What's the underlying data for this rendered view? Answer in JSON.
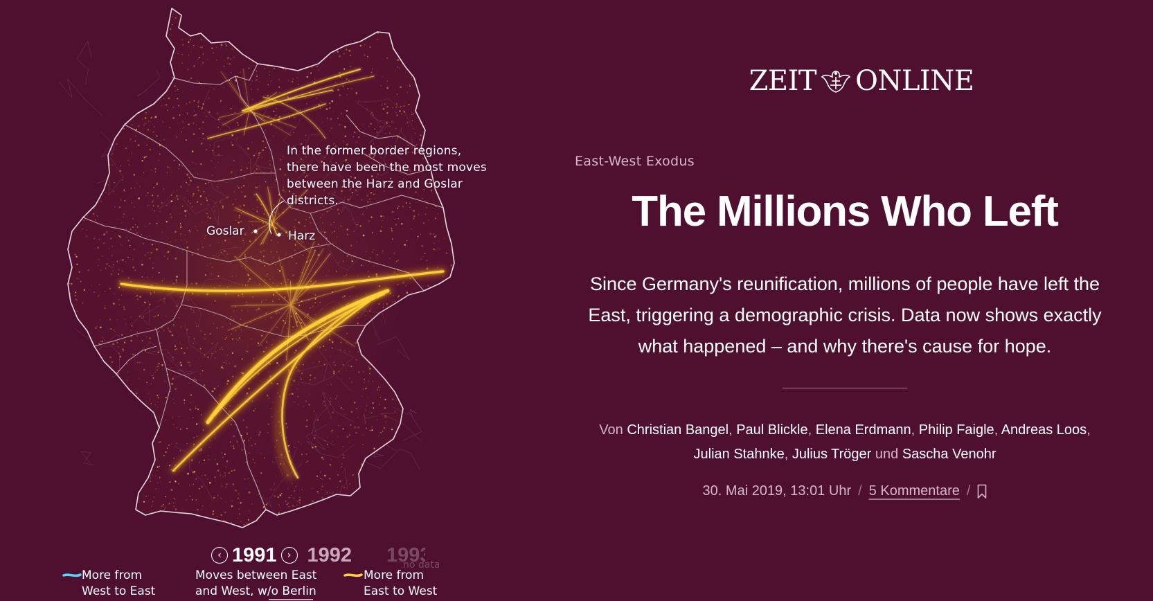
{
  "brand": {
    "logo_left": "ZEIT",
    "logo_right": "ONLINE",
    "emblem_icon": "eagle-crest-icon"
  },
  "article": {
    "kicker": "East-West Exodus",
    "headline": "The Millions Who Left",
    "lede": "Since Germany's reunification, millions of people have left the East, triggering a demographic crisis. Data now shows exactly what happened – and why there's cause for hope.",
    "byline_prefix": "Von",
    "byline_and": "und",
    "authors": [
      "Christian Bangel",
      "Paul Blickle",
      "Elena Erdmann",
      "Philip Faigle",
      "Andreas Loos",
      "Julian Stahnke",
      "Julius Tröger",
      "Sascha Venohr"
    ],
    "date": "30. Mai 2019, 13:01 Uhr",
    "comments": "5 Kommentare",
    "bookmark_icon": "bookmark-icon"
  },
  "map": {
    "annotation": "In the former border regions, there have been the most moves between the Harz and Goslar districts.",
    "places": {
      "goslar": "Goslar",
      "harz": "Harz"
    },
    "colors": {
      "background": "#4f1030",
      "border": "#e8dce4",
      "flow_east_to_west": "#ffd23a",
      "flow_west_to_east": "#4fd8ff"
    }
  },
  "timeline": {
    "prev_icon": "chevron-left-icon",
    "next_icon": "chevron-right-icon",
    "current_year": "1991",
    "next_year": "1992",
    "far_year": "1993",
    "far_note": "no data"
  },
  "legend": {
    "west_to_east_line1": "More from",
    "west_to_east_line2": "West to East",
    "moves_line1": "Moves between East",
    "moves_line2": "and West, w/o Berlin",
    "east_to_west_line1": "More from",
    "east_to_west_line2": "East to West"
  }
}
